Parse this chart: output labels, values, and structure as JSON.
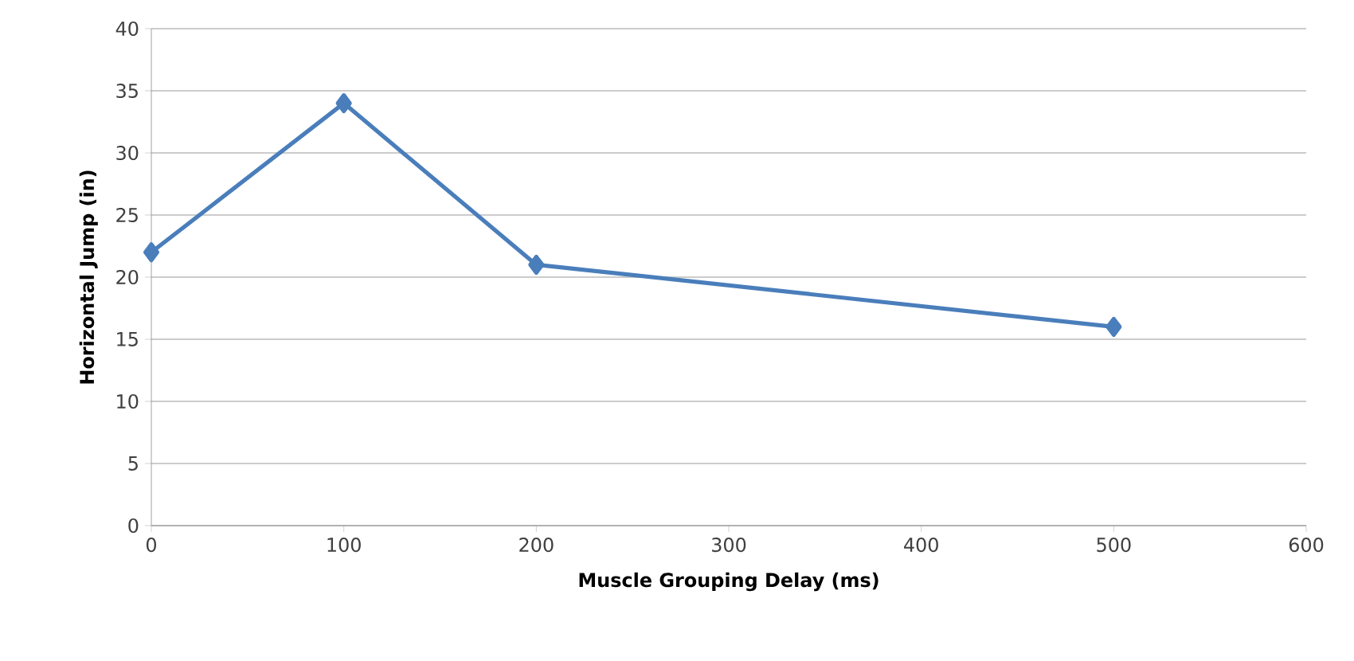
{
  "chart_data": {
    "type": "line",
    "xlabel": "Muscle Grouping Delay (ms)",
    "ylabel": "Horizontal Jump (in)",
    "x": [
      0,
      100,
      200,
      500
    ],
    "series": [
      {
        "color": "#4a7ebb",
        "values": [
          22,
          34,
          21,
          16
        ]
      }
    ],
    "xlim": [
      0,
      600
    ],
    "xticks": [
      0,
      100,
      200,
      300,
      400,
      500,
      600
    ],
    "ylim": [
      0,
      40
    ],
    "yticks": [
      0,
      5,
      10,
      15,
      20,
      25,
      30,
      35,
      40
    ],
    "grid": "y",
    "marker": "diamond",
    "line_style": "solid"
  }
}
